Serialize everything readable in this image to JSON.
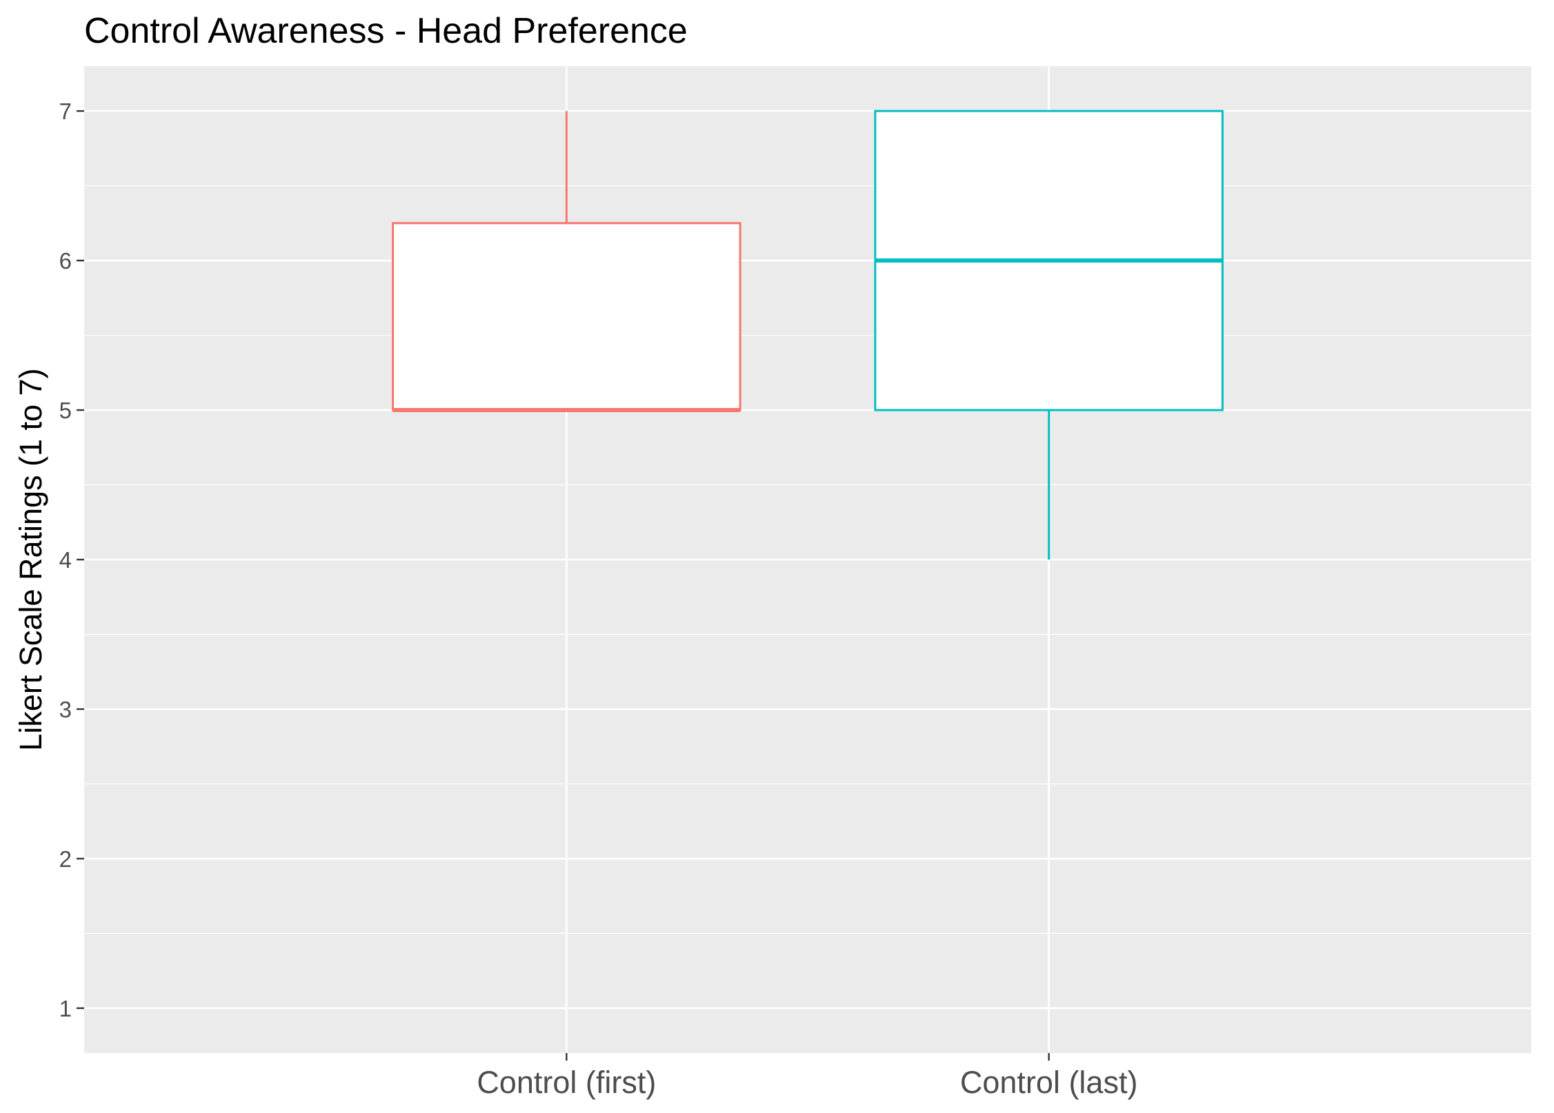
{
  "chart_data": {
    "type": "boxplot",
    "title": "Control Awareness - Head Preference",
    "xlabel": "",
    "ylabel": "Likert Scale Ratings (1 to 7)",
    "categories": [
      "Control (first)",
      "Control (last)"
    ],
    "yticks": [
      "1",
      "2",
      "3",
      "4",
      "5",
      "6",
      "7"
    ],
    "ylim": [
      0.7,
      7.3
    ],
    "grid": true,
    "legend": "none",
    "series": [
      {
        "category": "Control (first)",
        "min": 5,
        "q1": 5,
        "median": 5,
        "q3": 6.25,
        "max": 7,
        "color": "#F8766D"
      },
      {
        "category": "Control (last)",
        "min": 4,
        "q1": 5,
        "median": 6,
        "q3": 7,
        "max": 7,
        "color": "#00BFC4"
      }
    ],
    "panel_background": "#EBEBEB",
    "grid_color": "#FFFFFF"
  }
}
